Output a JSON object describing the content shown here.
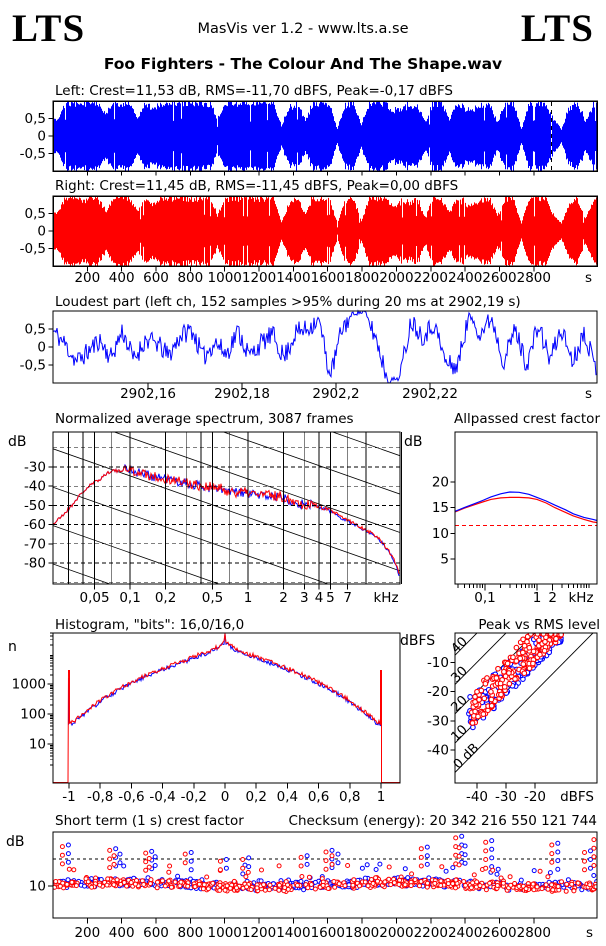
{
  "header": {
    "logo_left": "LTS",
    "logo_right": "LTS",
    "app_line": "MasVis ver 1.2 - www.lts.a.se",
    "title": "Foo Fighters - The Colour And The Shape.wav"
  },
  "colors": {
    "left_channel": "#0000ff",
    "right_channel": "#ff0000",
    "axis": "#000000",
    "background": "#ffffff"
  },
  "chart_data": [
    {
      "id": "left-waveform",
      "type": "area",
      "title": "Left: Crest=11,53 dB, RMS=-11,70 dBFS, Peak=-0,17 dBFS",
      "channel": "left",
      "color": "#0000ff",
      "yticks": [
        [
          0.5,
          "0,5"
        ],
        [
          0,
          "0"
        ],
        [
          -0.5,
          "-0,5"
        ]
      ],
      "xlim_s": [
        0,
        3168
      ],
      "marker_s": 2902.19,
      "envelope": [
        0.5,
        0.97,
        0.95,
        0.9,
        0.97,
        0.96,
        0.6,
        0.97,
        0.95,
        0.97,
        0.55,
        0.95,
        0.8,
        0.97,
        0.96,
        0.95,
        0.97,
        0.97,
        0.96,
        0.95,
        0.5,
        0.97,
        0.96,
        0.97,
        0.95,
        0.97,
        0.96,
        0.97,
        0.3,
        0.8,
        0.97,
        0.45,
        0.95,
        0.97,
        0.96,
        0.2,
        0.9,
        0.96,
        0.3,
        0.95,
        0.97,
        0.96,
        0.75,
        0.8,
        0.85,
        0.9,
        0.4,
        0.95,
        0.97,
        0.5,
        0.96,
        0.8,
        0.75,
        0.9,
        0.96,
        0.4,
        0.95,
        0.97,
        0.2,
        0.95,
        0.97,
        0.96,
        0.5,
        0.2,
        0.8,
        0.97,
        0.4,
        0.9
      ]
    },
    {
      "id": "right-waveform",
      "type": "area",
      "title": "Right: Crest=11,45 dB, RMS=-11,45 dBFS, Peak=0,00 dBFS",
      "channel": "right",
      "color": "#ff0000",
      "yticks": [
        [
          0.5,
          "0,5"
        ],
        [
          0,
          "0"
        ],
        [
          -0.5,
          "-0,5"
        ]
      ],
      "xlim_s": [
        0,
        3168
      ],
      "time_ticks_s": [
        200,
        400,
        600,
        800,
        1000,
        1200,
        1400,
        1600,
        1800,
        2000,
        2200,
        2400,
        2600,
        2800
      ],
      "time_unit": "s",
      "envelope": [
        0.55,
        0.96,
        0.97,
        0.88,
        0.96,
        0.97,
        0.55,
        0.96,
        0.97,
        0.96,
        0.6,
        0.96,
        0.78,
        0.96,
        0.97,
        0.96,
        0.96,
        0.96,
        0.97,
        0.96,
        0.45,
        0.96,
        0.97,
        0.96,
        0.96,
        0.96,
        0.97,
        0.96,
        0.28,
        0.82,
        0.96,
        0.5,
        0.96,
        0.96,
        0.97,
        0.22,
        0.88,
        0.97,
        0.28,
        0.96,
        0.96,
        0.97,
        0.72,
        0.82,
        0.83,
        0.92,
        0.38,
        0.96,
        0.96,
        0.52,
        0.97,
        0.78,
        0.77,
        0.88,
        0.97,
        0.42,
        0.96,
        0.96,
        0.22,
        0.96,
        0.96,
        0.97,
        0.48,
        0.22,
        0.78,
        0.96,
        0.38,
        0.92
      ]
    },
    {
      "id": "loudest-part",
      "type": "line",
      "title": "Loudest part (left ch, 152 samples >95% during 20 ms at 2902,19 s)",
      "color": "#0000ff",
      "yticks": [
        [
          0.5,
          "0,5"
        ],
        [
          0,
          "0"
        ],
        [
          -0.5,
          "-0,5"
        ]
      ],
      "xticks": [
        [
          2902.16,
          "2902,16"
        ],
        [
          2902.18,
          "2902,18"
        ],
        [
          2902.2,
          "2902,2"
        ],
        [
          2902.22,
          "2902,22"
        ]
      ],
      "x_unit": "s",
      "xlim_s": [
        2902.14,
        2902.2555
      ],
      "samples": [
        0.45,
        0.1,
        -0.4,
        -0.15,
        0.2,
        -0.3,
        0.45,
        -0.35,
        0.2,
        0.1,
        -0.25,
        0.3,
        0.5,
        -0.3,
        0.15,
        -0.2,
        0.45,
        -0.25,
        0.1,
        0.35,
        -0.3,
        0.4,
        0.5,
        0.8,
        -0.85,
        0.5,
        0.95,
        0.97,
        0.2,
        -0.95,
        -0.85,
        0.75,
        0.3,
        0.65,
        -0.45,
        -0.55,
        0.9,
        0.4,
        0.8,
        -0.4,
        0.5,
        -0.5,
        0.6,
        -0.35,
        0.5,
        -0.4,
        0.45,
        -0.65
      ]
    },
    {
      "id": "spectrum",
      "type": "line",
      "title": "Normalized average spectrum, 3087 frames",
      "ylabel": "dB",
      "yticks": [
        -30,
        -40,
        -50,
        -60,
        -70,
        -80
      ],
      "xticks": [
        [
          0.05,
          "0,05"
        ],
        [
          0.1,
          "0,1"
        ],
        [
          0.2,
          "0,2"
        ],
        [
          0.5,
          "0,5"
        ],
        [
          1,
          "1"
        ],
        [
          2,
          "2"
        ],
        [
          3,
          "3"
        ],
        [
          4,
          "4"
        ],
        [
          5,
          "5"
        ],
        [
          7,
          "7"
        ]
      ],
      "x_unit": "kHz",
      "ylim": [
        -91,
        -12
      ],
      "grid_freqs_khz": [
        0.03,
        0.04,
        0.05,
        0.07,
        0.1,
        0.2,
        0.3,
        0.4,
        0.5,
        0.7,
        1,
        2,
        3,
        4,
        5,
        7,
        10,
        20
      ],
      "series": [
        {
          "name": "left",
          "color": "#0000ff"
        },
        {
          "name": "right",
          "color": "#ff0000"
        }
      ],
      "points_khz_db": [
        [
          0.022,
          -60
        ],
        [
          0.025,
          -57
        ],
        [
          0.028,
          -54
        ],
        [
          0.032,
          -50
        ],
        [
          0.036,
          -46
        ],
        [
          0.04,
          -43
        ],
        [
          0.045,
          -40
        ],
        [
          0.05,
          -38
        ],
        [
          0.055,
          -36.5
        ],
        [
          0.06,
          -34.5
        ],
        [
          0.065,
          -33
        ],
        [
          0.07,
          -31.5
        ],
        [
          0.08,
          -32.5
        ],
        [
          0.09,
          -30.5
        ],
        [
          0.1,
          -31.5
        ],
        [
          0.12,
          -33
        ],
        [
          0.15,
          -34.5
        ],
        [
          0.2,
          -36
        ],
        [
          0.25,
          -37.5
        ],
        [
          0.3,
          -38.5
        ],
        [
          0.4,
          -40
        ],
        [
          0.5,
          -41
        ],
        [
          0.6,
          -42
        ],
        [
          0.7,
          -43
        ],
        [
          0.85,
          -43.5
        ],
        [
          1,
          -44
        ],
        [
          1.2,
          -44.5
        ],
        [
          1.5,
          -45
        ],
        [
          2,
          -46
        ],
        [
          2.5,
          -48
        ],
        [
          3,
          -50
        ],
        [
          3.5,
          -49.5
        ],
        [
          4,
          -51
        ],
        [
          5,
          -53
        ],
        [
          6,
          -56
        ],
        [
          7,
          -58
        ],
        [
          8,
          -60
        ],
        [
          10,
          -63
        ],
        [
          12,
          -66
        ],
        [
          14,
          -70
        ],
        [
          16,
          -75
        ],
        [
          18,
          -81
        ],
        [
          19.5,
          -88
        ]
      ]
    },
    {
      "id": "allpassed-crest",
      "type": "line",
      "title": "Allpassed crest factor",
      "ylabel": "dB",
      "yticks": [
        20,
        15,
        10,
        5
      ],
      "xticks": [
        [
          0.1,
          "0,1"
        ],
        [
          1,
          "1"
        ],
        [
          2,
          "2"
        ]
      ],
      "x_unit": "kHz",
      "dashed_line_db": 11.5,
      "freqs_khz": [
        0.027,
        0.04,
        0.06,
        0.09,
        0.13,
        0.2,
        0.3,
        0.45,
        0.7,
        1,
        1.5,
        2.2,
        3.5,
        5,
        8,
        12,
        14.3
      ],
      "series": [
        {
          "name": "left",
          "color": "#0000ff",
          "values": [
            14.3,
            15.0,
            15.7,
            16.4,
            17.1,
            17.7,
            18.05,
            18.0,
            17.6,
            17.0,
            16.3,
            15.5,
            14.6,
            13.8,
            13.1,
            12.7,
            12.5
          ]
        },
        {
          "name": "right",
          "color": "#ff0000",
          "values": [
            14.2,
            14.9,
            15.5,
            16.1,
            16.6,
            16.9,
            17.0,
            17.0,
            16.9,
            16.6,
            15.9,
            15.0,
            14.1,
            13.4,
            12.7,
            12.2,
            12.1
          ]
        }
      ]
    },
    {
      "id": "histogram",
      "type": "line",
      "title": "Histogram, \"bits\": 16,0/16,0",
      "ylabel": "n",
      "yticks": [
        [
          10,
          "10"
        ],
        [
          100,
          "100"
        ],
        [
          1000,
          "1000"
        ]
      ],
      "xticks": [
        [
          -1,
          "-1"
        ],
        [
          -0.8,
          "-0,8"
        ],
        [
          -0.6,
          "-0,6"
        ],
        [
          -0.4,
          "-0,4"
        ],
        [
          -0.2,
          "-0,2"
        ],
        [
          0,
          "0"
        ],
        [
          0.2,
          "0,2"
        ],
        [
          0.4,
          "0,4"
        ],
        [
          0.6,
          "0,6"
        ],
        [
          0.8,
          "0,8"
        ],
        [
          1,
          "1"
        ]
      ],
      "series": [
        {
          "name": "left",
          "color": "#0000ff"
        },
        {
          "name": "right",
          "color": "#ff0000"
        }
      ],
      "half_profile_x_log10n": [
        [
          0,
          4.45
        ],
        [
          0.03,
          4.3
        ],
        [
          0.06,
          4.2
        ],
        [
          0.1,
          4.1
        ],
        [
          0.15,
          4.0
        ],
        [
          0.2,
          3.92
        ],
        [
          0.25,
          3.8
        ],
        [
          0.3,
          3.72
        ],
        [
          0.35,
          3.62
        ],
        [
          0.4,
          3.52
        ],
        [
          0.45,
          3.42
        ],
        [
          0.5,
          3.3
        ],
        [
          0.55,
          3.18
        ],
        [
          0.6,
          3.05
        ],
        [
          0.65,
          2.92
        ],
        [
          0.7,
          2.78
        ],
        [
          0.75,
          2.62
        ],
        [
          0.8,
          2.45
        ],
        [
          0.85,
          2.25
        ],
        [
          0.9,
          2.05
        ],
        [
          0.95,
          1.85
        ],
        [
          0.97,
          1.75
        ],
        [
          1,
          1.7
        ]
      ],
      "center_spike_log10n": 4.9,
      "edge_spike_log10n": 3.45
    },
    {
      "id": "peak-vs-rms",
      "type": "scatter",
      "title": "Peak vs RMS level",
      "ylabel": "dBFS",
      "yticks": [
        -10,
        -20,
        -30,
        -40
      ],
      "xticks": [
        -40,
        -30,
        -20
      ],
      "x_unit": "dBFS",
      "diagonal_labels_db": [
        [
          40,
          "40"
        ],
        [
          30,
          "30"
        ],
        [
          20,
          "20"
        ],
        [
          10,
          "10"
        ],
        [
          0,
          "0 dB"
        ]
      ],
      "xlim": [
        -47.6,
        1.4
      ],
      "ylim": [
        -51.2,
        0
      ],
      "scatter": {
        "n_red": 240,
        "n_blue": 200,
        "rms_range": [
          -43,
          -11
        ],
        "crest_typical_db": [
          10,
          20
        ],
        "seed_red": 7,
        "seed_blue": 13
      }
    },
    {
      "id": "short-term-crest",
      "type": "scatter",
      "title": "Short term (1 s) crest factor",
      "checksum_label": "Checksum (energy): 20 342 216 550 121 744",
      "ylabel": "dB",
      "yticks": [
        [
          10,
          "10"
        ]
      ],
      "dashed_line_db": 15,
      "x_unit": "s",
      "time_ticks_s": [
        200,
        400,
        600,
        800,
        1000,
        1200,
        1400,
        1600,
        1800,
        2000,
        2200,
        2400,
        2600,
        2800
      ],
      "typical_db": [
        9,
        13
      ],
      "n_red": 520,
      "n_blue": 460,
      "spikes_s_db": [
        [
          55,
          17.3
        ],
        [
          330,
          16.6
        ],
        [
          355,
          15.6
        ],
        [
          540,
          16.1
        ],
        [
          560,
          15.1
        ],
        [
          770,
          15.9
        ],
        [
          975,
          14.6
        ],
        [
          1105,
          14.9
        ],
        [
          1445,
          15.3
        ],
        [
          1590,
          16.3
        ],
        [
          1625,
          15.6
        ],
        [
          2145,
          16.9
        ],
        [
          2345,
          18.9
        ],
        [
          2365,
          17.1
        ],
        [
          2520,
          18.1
        ],
        [
          2905,
          17.6
        ],
        [
          3095,
          16.2
        ],
        [
          3150,
          18.6
        ]
      ]
    }
  ]
}
